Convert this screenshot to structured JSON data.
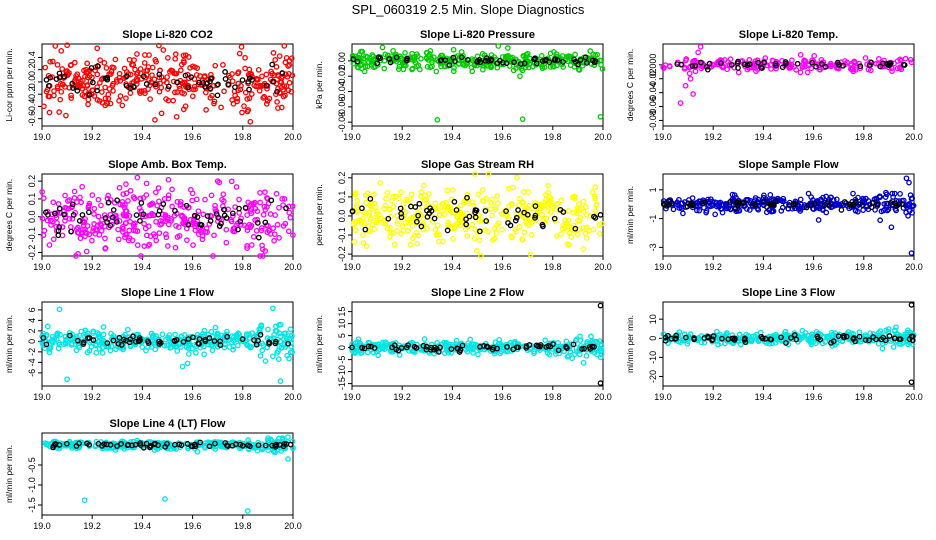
{
  "title": "SPL_060319  2.5 Min. Slope Diagnostics",
  "chart_data": [
    {
      "type": "scatter",
      "title": "Slope Li-820 CO2",
      "ylabel": "Li-cor ppm per min.",
      "color": "#ff0000",
      "xlim": [
        19.0,
        20.0
      ],
      "xticks": [
        "19.0",
        "19.2",
        "19.4",
        "19.6",
        "19.8",
        "20.0"
      ],
      "ylim": [
        -0.72,
        0.62
      ],
      "yticks": [
        -0.6,
        -0.4,
        -0.2,
        0.0,
        0.2,
        0.4
      ],
      "ytick_labels": [
        "-0.6",
        "-0.4",
        "-0.2",
        "0.0",
        "0.2",
        "0.4"
      ],
      "spread": 0.22,
      "n_color": 380,
      "n_black": 55,
      "outliers": [
        {
          "x": 19.22,
          "y": 0.55
        },
        {
          "x": 19.45,
          "y": -0.62
        },
        {
          "x": 19.83,
          "y": -0.65
        },
        {
          "x": 19.03,
          "y": -0.5
        }
      ]
    },
    {
      "type": "scatter",
      "title": "Slope Li-820 Pressure",
      "ylabel": "kPa per min.",
      "color": "#00cc00",
      "xlim": [
        19.0,
        20.0
      ],
      "xticks": [
        "19.0",
        "19.2",
        "19.4",
        "19.6",
        "19.8",
        "20.0"
      ],
      "ylim": [
        -0.085,
        0.022
      ],
      "yticks": [
        -0.08,
        -0.06,
        -0.04,
        -0.02,
        0.0
      ],
      "ytick_labels": [
        "-0.08",
        "-0.06",
        "-0.04",
        "-0.02",
        "0.00"
      ],
      "spread": 0.006,
      "n_color": 330,
      "n_black": 55,
      "outliers": [
        {
          "x": 19.34,
          "y": -0.077
        },
        {
          "x": 19.68,
          "y": -0.076
        },
        {
          "x": 19.99,
          "y": -0.073
        }
      ]
    },
    {
      "type": "scatter",
      "title": "Slope Li-820 Temp.",
      "ylabel": "degrees C per min.",
      "color": "#ff00ff",
      "xlim": [
        19.0,
        20.0
      ],
      "xticks": [
        "19.0",
        "19.2",
        "19.4",
        "19.6",
        "19.8",
        "20.0"
      ],
      "ylim": [
        -0.088,
        0.03
      ],
      "yticks": [
        -0.08,
        -0.06,
        -0.04,
        -0.02,
        0.0
      ],
      "ytick_labels": [
        "-0.08",
        "-0.06",
        "-0.04",
        "-0.02",
        "0.000"
      ],
      "spread": 0.005,
      "n_color": 200,
      "n_black": 45,
      "outliers": [
        {
          "x": 19.07,
          "y": -0.055
        },
        {
          "x": 19.12,
          "y": -0.042
        },
        {
          "x": 19.15,
          "y": 0.026
        },
        {
          "x": 19.09,
          "y": -0.03
        },
        {
          "x": 19.14,
          "y": 0.018
        },
        {
          "x": 19.11,
          "y": -0.02
        }
      ]
    },
    {
      "type": "scatter",
      "title": "Slope Amb. Box Temp.",
      "ylabel": "degrees C per min.",
      "color": "#ff00ff",
      "xlim": [
        19.0,
        20.0
      ],
      "xticks": [
        "19.0",
        "19.2",
        "19.4",
        "19.6",
        "19.8",
        "20.0"
      ],
      "ylim": [
        -0.22,
        0.24
      ],
      "yticks": [
        -0.2,
        -0.1,
        0.0,
        0.1,
        0.2
      ],
      "ytick_labels": [
        "-0.2",
        "-0.1",
        "0.0",
        "0.1",
        "0.2"
      ],
      "spread": 0.085,
      "n_color": 380,
      "n_black": 55,
      "outliers": [
        {
          "x": 19.38,
          "y": 0.22
        },
        {
          "x": 19.7,
          "y": 0.2
        }
      ]
    },
    {
      "type": "scatter",
      "title": "Slope Gas Stream RH",
      "ylabel": "percent per min.",
      "color": "#ffff00",
      "xlim": [
        19.0,
        20.0
      ],
      "xticks": [
        "19.0",
        "19.2",
        "19.4",
        "19.6",
        "19.8",
        "20.0"
      ],
      "ylim": [
        -0.21,
        0.22
      ],
      "yticks": [
        -0.2,
        -0.1,
        0.0,
        0.1,
        0.2
      ],
      "ytick_labels": [
        "-0.2",
        "-0.1",
        "0.0",
        "0.1",
        "0.2"
      ],
      "spread": 0.08,
      "n_color": 380,
      "n_black": 55,
      "outliers": []
    },
    {
      "type": "scatter",
      "title": "Slope Sample Flow",
      "ylabel": "ml/min per min.",
      "color": "#0000cc",
      "xlim": [
        19.0,
        20.0
      ],
      "xticks": [
        "19.0",
        "19.2",
        "19.4",
        "19.6",
        "19.8",
        "20.0"
      ],
      "ylim": [
        -3.6,
        2.1
      ],
      "yticks": [
        -3,
        -1,
        1
      ],
      "ytick_labels": [
        "-3",
        "-1",
        "1"
      ],
      "spread": 0.25,
      "n_color": 330,
      "n_black": 55,
      "outliers": [
        {
          "x": 19.99,
          "y": -3.4
        },
        {
          "x": 19.97,
          "y": 1.8
        },
        {
          "x": 19.98,
          "y": 1.5
        },
        {
          "x": 19.91,
          "y": -1.6
        },
        {
          "x": 19.62,
          "y": -1.1
        }
      ]
    },
    {
      "type": "scatter",
      "title": "Slope Line 1 Flow",
      "ylabel": "ml/min per min.",
      "color": "#00e5e5",
      "xlim": [
        19.0,
        20.0
      ],
      "xticks": [
        "19.0",
        "19.2",
        "19.4",
        "19.6",
        "19.8",
        "20.0"
      ],
      "ylim": [
        -8.5,
        7.5
      ],
      "yticks": [
        -6,
        -4,
        -2,
        0,
        2,
        4,
        6
      ],
      "ytick_labels": [
        "-6",
        "-4",
        "-2",
        "0",
        "2",
        "4",
        "6"
      ],
      "spread": 1.0,
      "n_color": 380,
      "n_black": 55,
      "outliers": [
        {
          "x": 19.07,
          "y": 6.1
        },
        {
          "x": 19.92,
          "y": 6.3
        },
        {
          "x": 19.95,
          "y": -7.6
        },
        {
          "x": 19.1,
          "y": -7.2
        },
        {
          "x": 19.56,
          "y": -4.8
        },
        {
          "x": 19.58,
          "y": -4.2
        }
      ]
    },
    {
      "type": "scatter",
      "title": "Slope Line 2 Flow",
      "ylabel": "ml/min per min.",
      "color": "#00e5e5",
      "xlim": [
        19.0,
        20.0
      ],
      "xticks": [
        "19.0",
        "19.2",
        "19.4",
        "19.6",
        "19.8",
        "20.0"
      ],
      "ylim": [
        -16,
        19
      ],
      "yticks": [
        -15,
        -10,
        -5,
        0,
        5,
        10,
        15
      ],
      "ytick_labels": [
        "-15",
        "-10",
        "-5",
        "0",
        "5",
        "10",
        "15"
      ],
      "spread": 1.3,
      "n_color": 330,
      "n_black": 65,
      "outliers": [
        {
          "x": 19.99,
          "y": 17.5
        },
        {
          "x": 19.99,
          "y": -14.8
        }
      ]
    },
    {
      "type": "scatter",
      "title": "Slope Line 3 Flow",
      "ylabel": "ml/min per min.",
      "color": "#00e5e5",
      "xlim": [
        19.0,
        20.0
      ],
      "xticks": [
        "19.0",
        "19.2",
        "19.4",
        "19.6",
        "19.8",
        "20.0"
      ],
      "ylim": [
        -25,
        19
      ],
      "yticks": [
        -20,
        -10,
        0,
        10
      ],
      "ytick_labels": [
        "-20",
        "-10",
        "0",
        "10"
      ],
      "spread": 1.5,
      "n_color": 330,
      "n_black": 65,
      "outliers": [
        {
          "x": 19.99,
          "y": 17.5
        },
        {
          "x": 19.99,
          "y": -23
        }
      ]
    },
    {
      "type": "scatter",
      "title": "Slope Line 4 (LT) Flow",
      "ylabel": "ml/min per min.",
      "color": "#00e5e5",
      "xlim": [
        19.0,
        20.0
      ],
      "xticks": [
        "19.0",
        "19.2",
        "19.4",
        "19.6",
        "19.8",
        "20.0"
      ],
      "ylim": [
        -1.75,
        0.3
      ],
      "yticks": [
        -1.5,
        -1.0,
        -0.5
      ],
      "ytick_labels": [
        "-1.5",
        "-1.0",
        "-0.5"
      ],
      "spread": 0.05,
      "n_color": 330,
      "n_black": 65,
      "outliers": [
        {
          "x": 19.17,
          "y": -1.38
        },
        {
          "x": 19.49,
          "y": -1.35
        },
        {
          "x": 19.82,
          "y": -1.65
        },
        {
          "x": 19.98,
          "y": -0.35
        }
      ]
    }
  ]
}
